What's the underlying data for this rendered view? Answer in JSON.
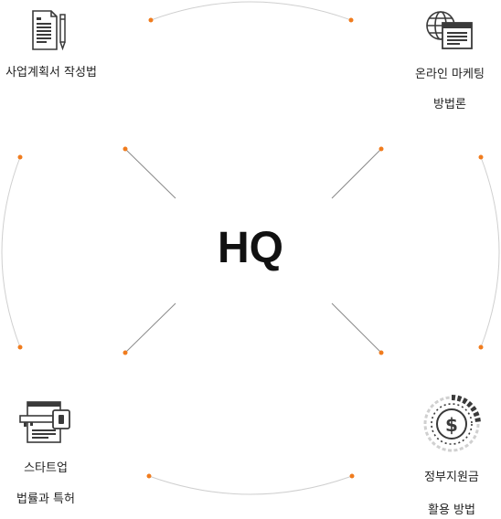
{
  "center": {
    "label": "HQ"
  },
  "items": [
    {
      "position": "top-left",
      "icon": "business-plan-document-icon",
      "lines": [
        "사업계획서 작성법"
      ]
    },
    {
      "position": "top-right",
      "icon": "globe-browser-icon",
      "lines": [
        "온라인 마케팅",
        "방법론"
      ]
    },
    {
      "position": "bottom-left",
      "icon": "key-document-icon",
      "lines": [
        "스타트업",
        "법률과 특허"
      ]
    },
    {
      "position": "bottom-right",
      "icon": "dollar-coin-icon",
      "lines": [
        "정부지원금",
        "활용 방법"
      ]
    }
  ],
  "colors": {
    "accent": "#f07c1e",
    "line": "#c8c8c8",
    "text": "#222222",
    "icon": "#3a3a3a"
  }
}
